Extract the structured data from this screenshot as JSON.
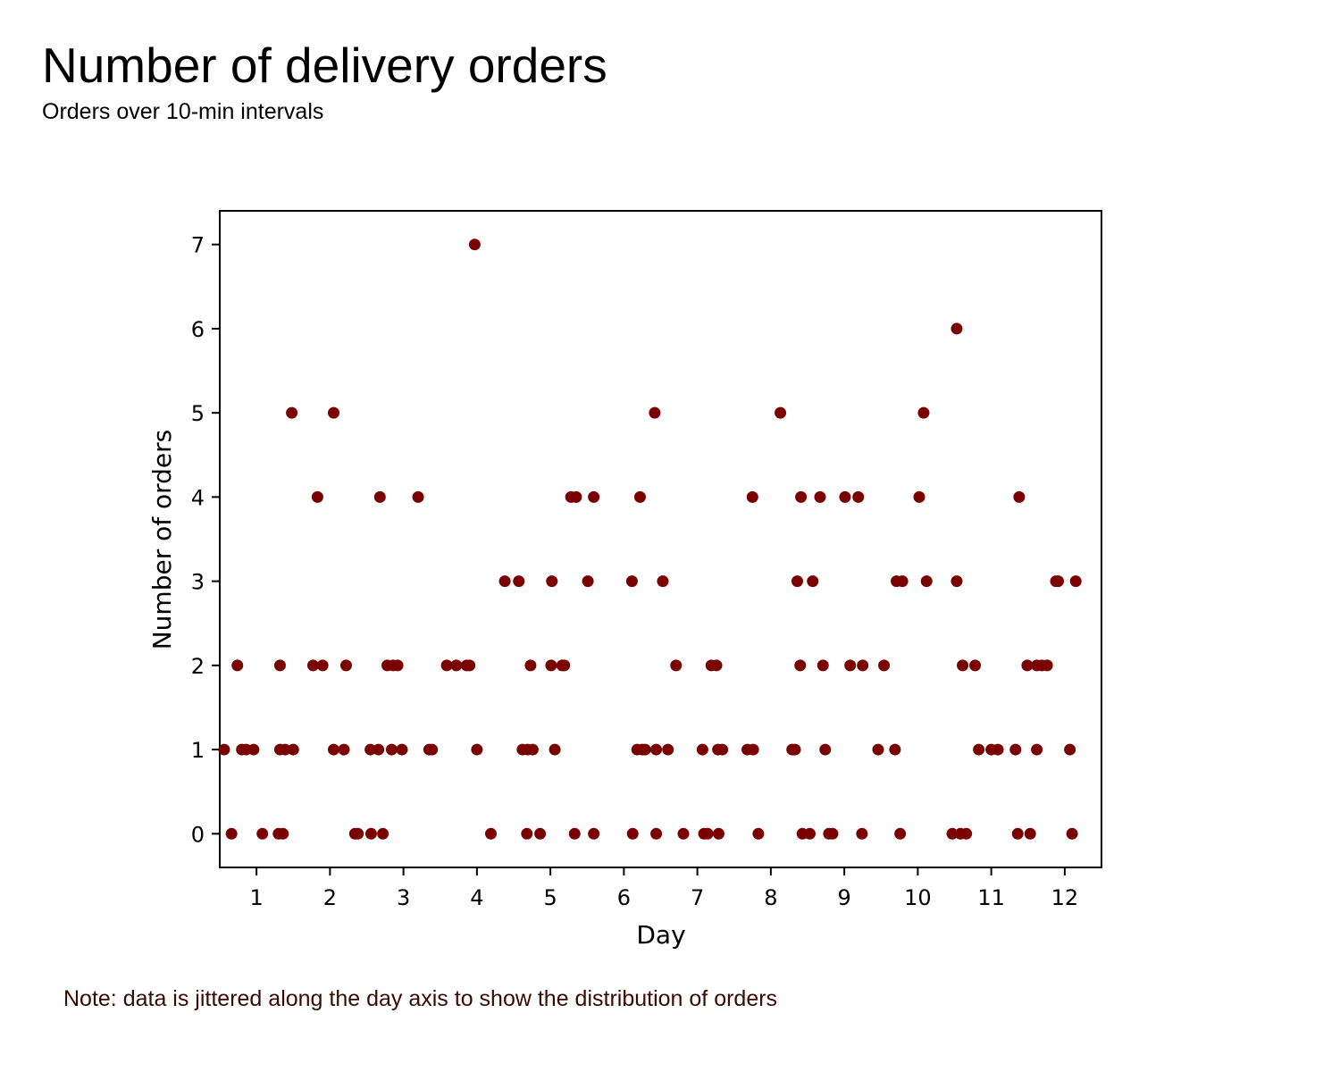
{
  "header": {
    "title": "Number of delivery orders",
    "subtitle": "Orders over 10-min intervals"
  },
  "footer": {
    "note": "Note: data is jittered along the day axis to show the distribution of orders"
  },
  "colors": {
    "point": "#7b0000",
    "note": "#3a0a00",
    "axis": "#000000",
    "background": "#ffffff"
  },
  "chart_data": {
    "type": "scatter",
    "title": "Number of delivery orders",
    "subtitle": "Orders over 10-min intervals",
    "xlabel": "Day",
    "ylabel": "Number of orders",
    "xlim": [
      0.5,
      12.5
    ],
    "ylim": [
      -0.4,
      7.4
    ],
    "xticks": [
      1,
      2,
      3,
      4,
      5,
      6,
      7,
      8,
      9,
      10,
      11,
      12
    ],
    "yticks": [
      0,
      1,
      2,
      3,
      4,
      5,
      6,
      7
    ],
    "grid": false,
    "legend": null,
    "series": [
      {
        "points": [
          [
            0.56,
            1
          ],
          [
            0.66,
            0
          ],
          [
            0.74,
            2
          ],
          [
            0.8,
            1
          ],
          [
            0.86,
            1
          ],
          [
            0.96,
            1
          ],
          [
            1.08,
            0
          ],
          [
            1.3,
            0
          ],
          [
            1.32,
            2
          ],
          [
            1.32,
            1
          ],
          [
            1.36,
            0
          ],
          [
            1.39,
            1
          ],
          [
            1.48,
            5
          ],
          [
            1.5,
            1
          ],
          [
            1.77,
            2
          ],
          [
            1.83,
            4
          ],
          [
            1.9,
            2
          ],
          [
            2.05,
            5
          ],
          [
            2.05,
            1
          ],
          [
            2.19,
            1
          ],
          [
            2.22,
            2
          ],
          [
            2.34,
            0
          ],
          [
            2.38,
            0
          ],
          [
            2.55,
            1
          ],
          [
            2.56,
            0
          ],
          [
            2.66,
            1
          ],
          [
            2.68,
            4
          ],
          [
            2.72,
            0
          ],
          [
            2.78,
            2
          ],
          [
            2.84,
            1
          ],
          [
            2.86,
            2
          ],
          [
            2.92,
            2
          ],
          [
            2.98,
            1
          ],
          [
            3.2,
            4
          ],
          [
            3.35,
            1
          ],
          [
            3.39,
            1
          ],
          [
            3.59,
            2
          ],
          [
            3.72,
            2
          ],
          [
            3.86,
            2
          ],
          [
            3.9,
            2
          ],
          [
            3.97,
            7
          ],
          [
            4.0,
            1
          ],
          [
            4.19,
            0
          ],
          [
            4.38,
            3
          ],
          [
            4.57,
            3
          ],
          [
            4.62,
            1
          ],
          [
            4.68,
            0
          ],
          [
            4.69,
            1
          ],
          [
            4.73,
            2
          ],
          [
            4.76,
            1
          ],
          [
            4.86,
            0
          ],
          [
            5.02,
            3
          ],
          [
            5.01,
            2
          ],
          [
            5.06,
            1
          ],
          [
            5.16,
            2
          ],
          [
            5.19,
            2
          ],
          [
            5.28,
            4
          ],
          [
            5.33,
            0
          ],
          [
            5.35,
            4
          ],
          [
            5.51,
            3
          ],
          [
            5.59,
            4
          ],
          [
            5.59,
            0
          ],
          [
            6.11,
            3
          ],
          [
            6.12,
            0
          ],
          [
            6.18,
            1
          ],
          [
            6.22,
            4
          ],
          [
            6.25,
            1
          ],
          [
            6.29,
            1
          ],
          [
            6.42,
            5
          ],
          [
            6.44,
            1
          ],
          [
            6.44,
            0
          ],
          [
            6.53,
            3
          ],
          [
            6.6,
            1
          ],
          [
            6.71,
            2
          ],
          [
            6.81,
            0
          ],
          [
            7.07,
            1
          ],
          [
            7.09,
            0
          ],
          [
            7.14,
            0
          ],
          [
            7.19,
            2
          ],
          [
            7.26,
            2
          ],
          [
            7.28,
            1
          ],
          [
            7.29,
            0
          ],
          [
            7.34,
            1
          ],
          [
            7.68,
            1
          ],
          [
            7.75,
            4
          ],
          [
            7.76,
            1
          ],
          [
            7.83,
            0
          ],
          [
            8.13,
            5
          ],
          [
            8.29,
            1
          ],
          [
            8.33,
            1
          ],
          [
            8.36,
            3
          ],
          [
            8.4,
            2
          ],
          [
            8.41,
            4
          ],
          [
            8.43,
            0
          ],
          [
            8.53,
            0
          ],
          [
            8.57,
            3
          ],
          [
            8.67,
            4
          ],
          [
            8.71,
            2
          ],
          [
            8.74,
            1
          ],
          [
            8.79,
            0
          ],
          [
            8.84,
            0
          ],
          [
            9.01,
            4
          ],
          [
            9.08,
            2
          ],
          [
            9.19,
            4
          ],
          [
            9.25,
            2
          ],
          [
            9.24,
            0
          ],
          [
            9.46,
            1
          ],
          [
            9.54,
            2
          ],
          [
            9.69,
            1
          ],
          [
            9.71,
            3
          ],
          [
            9.76,
            0
          ],
          [
            9.79,
            3
          ],
          [
            10.02,
            4
          ],
          [
            10.08,
            5
          ],
          [
            10.12,
            3
          ],
          [
            10.47,
            0
          ],
          [
            10.53,
            6
          ],
          [
            10.53,
            3
          ],
          [
            10.58,
            0
          ],
          [
            10.61,
            2
          ],
          [
            10.66,
            0
          ],
          [
            10.78,
            2
          ],
          [
            10.83,
            1
          ],
          [
            11.0,
            1
          ],
          [
            11.09,
            1
          ],
          [
            11.33,
            1
          ],
          [
            11.36,
            0
          ],
          [
            11.38,
            4
          ],
          [
            11.49,
            2
          ],
          [
            11.53,
            0
          ],
          [
            11.62,
            1
          ],
          [
            11.62,
            2
          ],
          [
            11.69,
            2
          ],
          [
            11.76,
            2
          ],
          [
            11.88,
            3
          ],
          [
            11.91,
            3
          ],
          [
            12.07,
            1
          ],
          [
            12.1,
            0
          ],
          [
            12.15,
            3
          ]
        ]
      }
    ]
  }
}
